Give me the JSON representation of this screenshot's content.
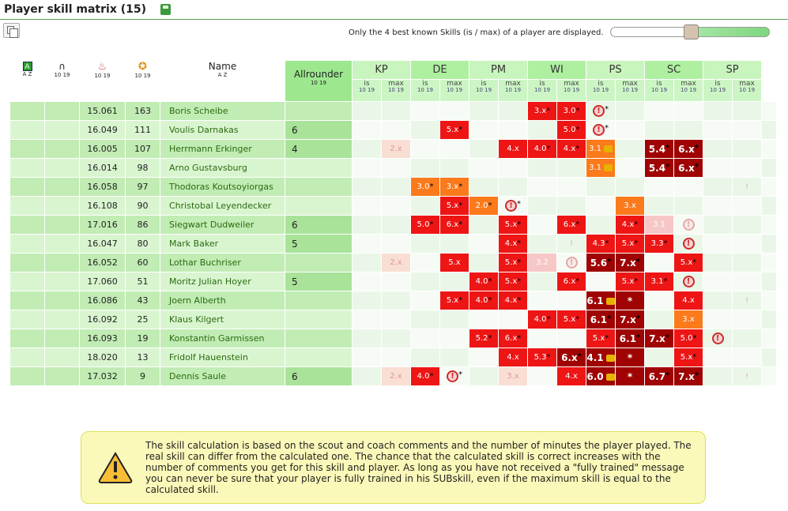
{
  "page": {
    "title": "Player skill matrix (15)"
  },
  "toolbar": {
    "note": "Only the 4 best known Skills (is / max) of a player are displayed.",
    "slider_value": 0.5
  },
  "columns": {
    "name": "Name",
    "allrounder": "Allrounder",
    "skills": [
      "KP",
      "DE",
      "PM",
      "WI",
      "PS",
      "SC",
      "SP"
    ],
    "is": "is",
    "max": "max",
    "sort_az": "A Z",
    "sort_num": "10 19"
  },
  "players": [
    {
      "age": "15.061",
      "val": "163",
      "name": "Boris Scheibe",
      "allround": "",
      "cells": [
        "",
        "",
        "",
        "",
        "",
        "",
        "3.x|cr1|*",
        "3.0|cr1|*",
        "!|ex|*",
        "",
        "",
        "",
        "",
        "",
        "",
        "",
        ""
      ]
    },
    {
      "age": "16.049",
      "val": "111",
      "name": "Voulis Darnakas",
      "allround": "6",
      "cells": [
        "",
        "",
        "",
        "5.x|cr1|*",
        "",
        "",
        "",
        "5.0|cr1|*",
        "!|ex|*",
        "",
        "",
        "",
        "",
        "",
        "",
        "",
        ""
      ]
    },
    {
      "age": "16.005",
      "val": "107",
      "name": "Herrmann Erkinger",
      "allround": "4",
      "cells": [
        "",
        "2.x|cpk",
        "",
        "",
        "",
        "4.x|cr1|",
        "4.0|cr1|*",
        "4.x|cr1|*",
        "3.1|cor|lk",
        "",
        "5.4|cdr|*",
        "6.x|cdr|*",
        "",
        "",
        "",
        "",
        ""
      ]
    },
    {
      "age": "16.014",
      "val": "98",
      "name": "Arno Gustavsburg",
      "allround": "",
      "cells": [
        "",
        "",
        "",
        "",
        "",
        "",
        "",
        "",
        "3.1|cor|lk",
        "",
        "5.4|cdr|*",
        "6.x|cdr|*",
        "",
        "",
        "",
        "",
        ""
      ]
    },
    {
      "age": "16.058",
      "val": "97",
      "name": "Thodoras Koutsoyiorgas",
      "allround": "",
      "cells": [
        "",
        "",
        "3.0|cor|*",
        "3.x|cor|*",
        "",
        "",
        "",
        "",
        "",
        "",
        "",
        "",
        "",
        "!|wt",
        "",
        "",
        ""
      ]
    },
    {
      "age": "16.108",
      "val": "90",
      "name": "Christobal Leyendecker",
      "allround": "",
      "cells": [
        "",
        "",
        "",
        "5.x|cr1|*",
        "2.0|cor|*",
        "!|ex|*",
        "",
        "",
        "",
        "3.x|cor|",
        "",
        "",
        "",
        "",
        "",
        "",
        ""
      ]
    },
    {
      "age": "17.016",
      "val": "86",
      "name": "Siegwart Dudweiler",
      "allround": "6",
      "cells": [
        "",
        "",
        "5.0|cr1|*",
        "6.x|cr1|*",
        "",
        "5.x|cr1|*",
        "",
        "6.x|cr1|*",
        "",
        "4.x|cr1|*",
        "3.1|cpk2|",
        "!|exf|",
        "",
        "",
        "",
        "",
        ""
      ]
    },
    {
      "age": "16.047",
      "val": "80",
      "name": "Mark Baker",
      "allround": "5",
      "cells": [
        "",
        "",
        "",
        "",
        "",
        "4.x|cr1|*",
        "",
        "!|wt",
        "4.3|cr1|*",
        "5.x|cr1|*",
        "3.3|cr1|*",
        "!|ex|",
        "",
        "",
        "",
        "",
        ""
      ]
    },
    {
      "age": "16.052",
      "val": "60",
      "name": "Lothar Buchriser",
      "allround": "",
      "cells": [
        "",
        "2.x|cpk",
        "",
        "5.x|cr1|",
        "",
        "5.x|cr1|*",
        "3.2|cpk2|",
        "!|exf|",
        "5.6|cdr|*",
        "7.x|cdr|*",
        "",
        "5.x|cr1|*",
        "",
        "",
        "",
        "",
        ""
      ]
    },
    {
      "age": "17.060",
      "val": "51",
      "name": "Moritz Julian Hoyer",
      "allround": "5",
      "cells": [
        "",
        "",
        "",
        "",
        "4.0|cr1|*",
        "5.x|cr1|*",
        "",
        "6.x|cr1|*",
        "",
        "5.x|cr1|*",
        "3.1|cr1|*",
        "!|ex|",
        "",
        "",
        "",
        "",
        ""
      ]
    },
    {
      "age": "16.086",
      "val": "43",
      "name": "Joern Alberth",
      "allround": "",
      "cells": [
        "",
        "",
        "",
        "5.x|cr1|*",
        "4.0|cr1|*",
        "4.x|cr1|*",
        "",
        "",
        "6.1|cdr|lk",
        "*|cdr|",
        "",
        "4.x|cr1|",
        "",
        "!|wt",
        "",
        "",
        ""
      ]
    },
    {
      "age": "16.092",
      "val": "25",
      "name": "Klaus Kilgert",
      "allround": "",
      "cells": [
        "",
        "",
        "",
        "",
        "",
        "",
        "4.0|cr1|*",
        "5.x|cr1|*",
        "6.1|cdr|*",
        "7.x|cdr|*",
        "",
        "3.x|cor|",
        "",
        "",
        "",
        "",
        ""
      ]
    },
    {
      "age": "16.093",
      "val": "19",
      "name": "Konstantin Garmissen",
      "allround": "",
      "cells": [
        "",
        "",
        "",
        "",
        "5.2|cr1|*",
        "6.x|cr1|*",
        "",
        "",
        "5.x|cr1|*",
        "6.1|cdr|*",
        "7.x|cdr|*",
        "5.0|cr1|*",
        "!|ex|",
        "",
        "",
        "",
        ""
      ]
    },
    {
      "age": "18.020",
      "val": "13",
      "name": "Fridolf Hauenstein",
      "allround": "",
      "cells": [
        "",
        "",
        "",
        "",
        "",
        "4.x|cr1|",
        "5.3|cr1|*",
        "6.x|cdr|*",
        "4.1|cdr|lk",
        "*|cdr|",
        "",
        "5.x|cr1|*",
        "",
        "",
        "",
        "",
        ""
      ]
    },
    {
      "age": "17.032",
      "val": "9",
      "name": "Dennis Saule",
      "allround": "6",
      "cells": [
        "",
        "2.x|cpk",
        "4.0|cr1|*",
        "!|ex|*",
        "",
        "3.x|cpk",
        "",
        "4.x|cr1|",
        "6.0|cdr|lk",
        "*|cdr|",
        "6.7|cdr|*",
        "7.x|cdr|*",
        "",
        "!|wt",
        "",
        "",
        ""
      ]
    }
  ],
  "info": {
    "text": "The skill calculation is based on the scout and coach comments and the number of minutes the player played. The real skill can differ from the calculated one. The chance that the calculated skill is correct increases with the number of comments you get for this skill and player. As long as you have not received a \"fully trained\" message you can never be sure that your player is fully trained in his SUBskill, even if the maximum skill is equal to the calculated skill."
  }
}
